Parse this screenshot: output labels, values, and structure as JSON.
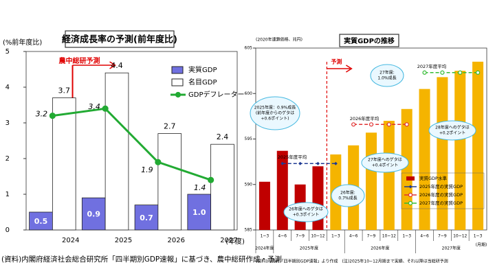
{
  "chart_data": [
    {
      "type": "bar",
      "title": "経済成長率の予測(前年度比)",
      "y_label": "(%前年度比)",
      "x_unit": "(年度)",
      "forecast_label": "農中総研予測",
      "categories": [
        "2024",
        "2025",
        "2026",
        "2027"
      ],
      "ylim": [
        0,
        5
      ],
      "yticks": [
        0,
        1,
        2,
        3,
        4,
        5
      ],
      "grid": false,
      "data_labels": true,
      "legend": "upper right",
      "series": [
        {
          "name": "実質GDP",
          "type": "bar",
          "color": "#7070e0",
          "values": [
            0.5,
            0.9,
            0.7,
            1.0
          ],
          "value_labels": [
            "0.5",
            "0.9",
            "0.7",
            "1.0"
          ]
        },
        {
          "name": "名目GDP",
          "type": "bar",
          "color": "#ffffff",
          "values": [
            3.7,
            4.4,
            2.7,
            2.4
          ]
        },
        {
          "name": "GDPデフレーター",
          "type": "line",
          "color": "#22aa33",
          "marker": "circle",
          "values": [
            3.2,
            3.4,
            1.9,
            1.4
          ]
        }
      ],
      "source": "(資料)内閣府経済社会総合研究所「四半期別GDP速報」に基づき、農中総研作成・予測"
    },
    {
      "type": "bar",
      "title": "実質GDPの推移",
      "y_label": "(2020年連鎖価格、兆円)",
      "x_unit": "(月期)",
      "forecast_label": "予測",
      "categories": [
        "1~3",
        "4~6",
        "7~9",
        "10~12",
        "1~3",
        "4~6",
        "7~9",
        "10~12",
        "1~3",
        "4~6",
        "7~9",
        "10~12",
        "1~3"
      ],
      "x_groups": [
        "2024年度",
        "2025年度",
        "2026年度",
        "2027年度"
      ],
      "ylim": [
        585,
        605
      ],
      "yticks": [
        585,
        590,
        595,
        600,
        605
      ],
      "grid": false,
      "data_labels": false,
      "legend": "lower right",
      "series": [
        {
          "name": "実質GDP水準",
          "type": "bar",
          "color": "#c00000",
          "colors": [
            "#c00000",
            "#c00000",
            "#c00000",
            "#c00000",
            "#f5b400",
            "#f5b400",
            "#f5b400",
            "#f5b400",
            "#f5b400",
            "#f5b400",
            "#f5b400",
            "#f5b400",
            "#f5b400"
          ],
          "values": [
            590.3,
            593.7,
            590.0,
            592.0,
            593.3,
            594.3,
            595.7,
            597.0,
            598.3,
            600.5,
            601.8,
            602.5,
            603.5
          ]
        },
        {
          "name": "2025年度の実質GDP",
          "type": "line",
          "dashed": true,
          "color": "#1f3a93",
          "marker": "diamond",
          "values": [
            null,
            592.3,
            592.3,
            592.3,
            592.3,
            null,
            null,
            null,
            null,
            null,
            null,
            null,
            null
          ]
        },
        {
          "name": "2026年度の実質GDP",
          "type": "line",
          "dashed": true,
          "color": "#e03030",
          "marker": "circle",
          "values": [
            null,
            null,
            null,
            null,
            null,
            596.6,
            596.6,
            596.6,
            596.6,
            null,
            null,
            null,
            null
          ]
        },
        {
          "name": "2027年度の実質GDP",
          "type": "line",
          "dashed": true,
          "color": "#33bb33",
          "marker": "circle",
          "values": [
            null,
            null,
            null,
            null,
            null,
            null,
            null,
            null,
            null,
            602.3,
            602.3,
            602.3,
            602.3
          ]
        }
      ],
      "avg_labels": [
        "2025年度平均",
        "2026年度平均",
        "2027年度平均"
      ],
      "annotations": [
        [
          "2025年度：0.9%成長",
          "(前年度からのゲタは",
          "+0.6ポイント)"
        ],
        [
          "26年度へのゲタは",
          "+0.3ポイント"
        ],
        [
          "26年度:",
          "0.7%成長"
        ],
        [
          "27年度へのゲタは",
          "+0.4ポイント"
        ],
        [
          "27年度:",
          "1.0%成長"
        ],
        [
          "28年度へのゲタは",
          "+0.2ポイント"
        ]
      ],
      "source": "(資料)内閣府「四半期別GDP速報」より作成　(注)2025年10~12月期まで実績、それ以降は当総研予測"
    }
  ]
}
